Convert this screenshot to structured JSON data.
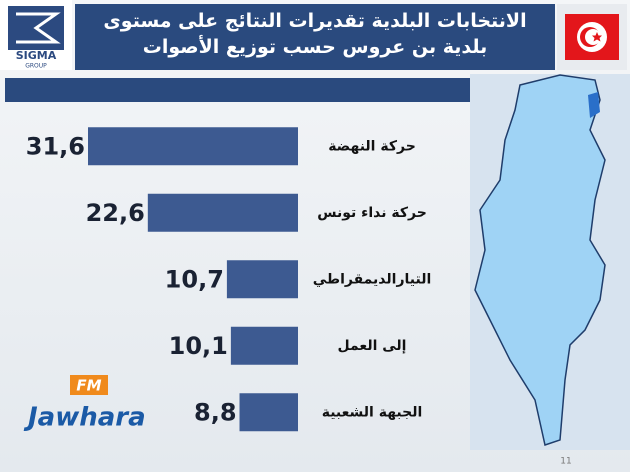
{
  "chart_data": {
    "type": "bar",
    "orientation": "horizontal",
    "title": "الانتخابات البلدية تقديرات النتائج على مستوى بلدية بن عروس حسب توزيع الأصوات",
    "categories": [
      "حركة النهضة",
      "حركة نداء تونس",
      "التيارالديمقراطي",
      "إلى العمل",
      "الجبهة الشعبية"
    ],
    "values": [
      31.6,
      22.6,
      10.7,
      10.1,
      8.8
    ],
    "value_labels": [
      "31,6",
      "22,6",
      "10,7",
      "10,1",
      "8,8"
    ],
    "color": "#3d5a91"
  },
  "logo": {
    "name": "SIGMA",
    "sub": "GROUP"
  },
  "watermark": {
    "brand": "Jawhara",
    "tag": "FM"
  },
  "page_number": "11"
}
